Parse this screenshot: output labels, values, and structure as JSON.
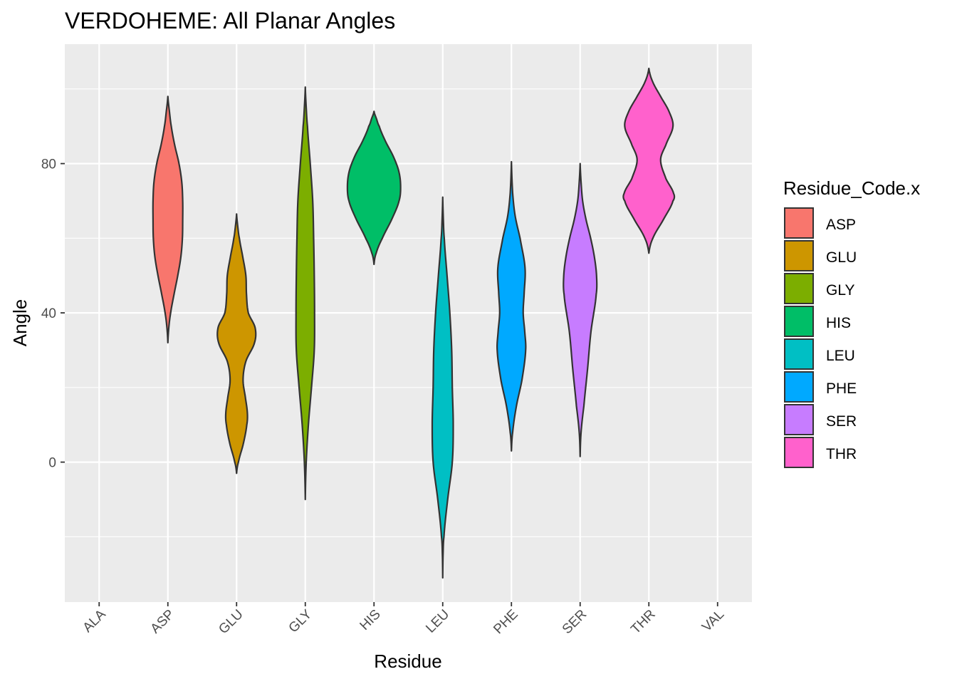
{
  "chart_data": {
    "type": "violin",
    "title": "VERDOHEME: All Planar Angles",
    "xlabel": "Residue",
    "ylabel": "Angle",
    "categories": [
      "ALA",
      "ASP",
      "GLU",
      "GLY",
      "HIS",
      "LEU",
      "PHE",
      "SER",
      "THR",
      "VAL"
    ],
    "ylim": [
      -37.5,
      112
    ],
    "y_ticks": [
      0,
      40,
      80
    ],
    "y_tick_labels": [
      "0",
      "40",
      "80"
    ],
    "grid": true,
    "legend": {
      "title": "Residue_Code.x",
      "position": "right",
      "entries": [
        "ASP",
        "GLU",
        "GLY",
        "HIS",
        "LEU",
        "PHE",
        "SER",
        "THR"
      ]
    },
    "series": [
      {
        "name": "ASP",
        "color": "#F8766D",
        "category": "ASP",
        "min": 32,
        "max": 98,
        "profile": [
          [
            32,
            0.0
          ],
          [
            36,
            0.03
          ],
          [
            40,
            0.09
          ],
          [
            45,
            0.2
          ],
          [
            50,
            0.32
          ],
          [
            55,
            0.42
          ],
          [
            60,
            0.47
          ],
          [
            65,
            0.48
          ],
          [
            70,
            0.48
          ],
          [
            75,
            0.45
          ],
          [
            80,
            0.36
          ],
          [
            85,
            0.22
          ],
          [
            90,
            0.11
          ],
          [
            94,
            0.05
          ],
          [
            98,
            0.0
          ]
        ]
      },
      {
        "name": "GLU",
        "color": "#CD9600",
        "category": "GLU",
        "min": -3,
        "max": 66.5,
        "profile": [
          [
            -3,
            0.0
          ],
          [
            0,
            0.06
          ],
          [
            5,
            0.22
          ],
          [
            10,
            0.33
          ],
          [
            13,
            0.35
          ],
          [
            17,
            0.29
          ],
          [
            22,
            0.21
          ],
          [
            27,
            0.3
          ],
          [
            32,
            0.58
          ],
          [
            36,
            0.6
          ],
          [
            40,
            0.38
          ],
          [
            45,
            0.32
          ],
          [
            50,
            0.3
          ],
          [
            55,
            0.2
          ],
          [
            60,
            0.09
          ],
          [
            63,
            0.04
          ],
          [
            66.5,
            0.0
          ]
        ]
      },
      {
        "name": "GLY",
        "color": "#7CAE00",
        "category": "GLY",
        "min": -10,
        "max": 100.5,
        "profile": [
          [
            -10,
            0.0
          ],
          [
            0,
            0.03
          ],
          [
            10,
            0.1
          ],
          [
            20,
            0.2
          ],
          [
            30,
            0.29
          ],
          [
            40,
            0.3
          ],
          [
            50,
            0.29
          ],
          [
            60,
            0.27
          ],
          [
            70,
            0.24
          ],
          [
            80,
            0.16
          ],
          [
            90,
            0.07
          ],
          [
            95,
            0.03
          ],
          [
            100.5,
            0.0
          ]
        ]
      },
      {
        "name": "HIS",
        "color": "#00BE67",
        "category": "HIS",
        "min": 53,
        "max": 94,
        "profile": [
          [
            53,
            0.0
          ],
          [
            56,
            0.07
          ],
          [
            60,
            0.27
          ],
          [
            65,
            0.57
          ],
          [
            70,
            0.81
          ],
          [
            74,
            0.86
          ],
          [
            78,
            0.8
          ],
          [
            82,
            0.62
          ],
          [
            86,
            0.37
          ],
          [
            90,
            0.17
          ],
          [
            92,
            0.08
          ],
          [
            94,
            0.0
          ]
        ]
      },
      {
        "name": "LEU",
        "color": "#00BFC4",
        "category": "LEU",
        "min": -31,
        "max": 71,
        "profile": [
          [
            -31,
            0.0
          ],
          [
            -25,
            0.01
          ],
          [
            -20,
            0.04
          ],
          [
            -10,
            0.16
          ],
          [
            0,
            0.31
          ],
          [
            10,
            0.34
          ],
          [
            20,
            0.31
          ],
          [
            30,
            0.29
          ],
          [
            40,
            0.23
          ],
          [
            50,
            0.14
          ],
          [
            60,
            0.05
          ],
          [
            65,
            0.02
          ],
          [
            71,
            0.0
          ]
        ]
      },
      {
        "name": "PHE",
        "color": "#00A9FF",
        "category": "PHE",
        "min": 3,
        "max": 80.5,
        "profile": [
          [
            3,
            0.0
          ],
          [
            8,
            0.04
          ],
          [
            15,
            0.16
          ],
          [
            22,
            0.34
          ],
          [
            30,
            0.46
          ],
          [
            35,
            0.43
          ],
          [
            40,
            0.38
          ],
          [
            45,
            0.41
          ],
          [
            52,
            0.44
          ],
          [
            60,
            0.28
          ],
          [
            66,
            0.12
          ],
          [
            72,
            0.04
          ],
          [
            80.5,
            0.0
          ]
        ]
      },
      {
        "name": "SER",
        "color": "#C77CFF",
        "category": "SER",
        "min": 1.5,
        "max": 80,
        "profile": [
          [
            1.5,
            0.0
          ],
          [
            8,
            0.03
          ],
          [
            15,
            0.12
          ],
          [
            25,
            0.24
          ],
          [
            35,
            0.35
          ],
          [
            45,
            0.52
          ],
          [
            50,
            0.53
          ],
          [
            55,
            0.46
          ],
          [
            60,
            0.34
          ],
          [
            65,
            0.19
          ],
          [
            70,
            0.08
          ],
          [
            75,
            0.03
          ],
          [
            80,
            0.0
          ]
        ]
      },
      {
        "name": "THR",
        "color": "#FF61CC",
        "category": "THR",
        "min": 56,
        "max": 105.5,
        "profile": [
          [
            56,
            0.0
          ],
          [
            60,
            0.13
          ],
          [
            65,
            0.47
          ],
          [
            70,
            0.78
          ],
          [
            72,
            0.8
          ],
          [
            76,
            0.55
          ],
          [
            81,
            0.38
          ],
          [
            85,
            0.55
          ],
          [
            90,
            0.78
          ],
          [
            94,
            0.65
          ],
          [
            98,
            0.38
          ],
          [
            102,
            0.12
          ],
          [
            105.5,
            0.0
          ]
        ]
      }
    ]
  }
}
